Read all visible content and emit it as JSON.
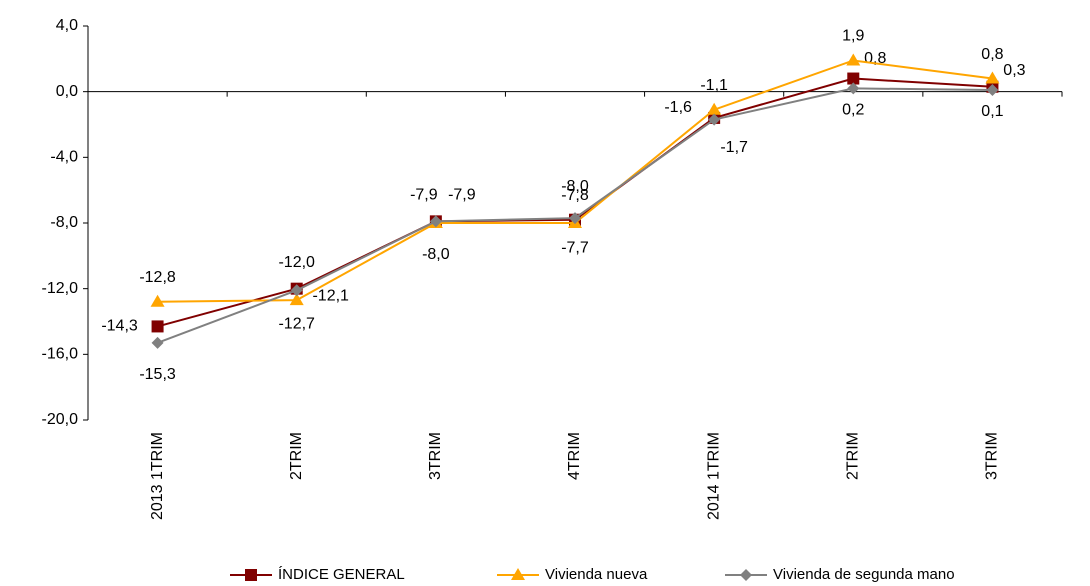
{
  "chart_data": {
    "type": "line",
    "categories": [
      "2013 1TRIM",
      "2TRIM",
      "3TRIM",
      "4TRIM",
      "2014 1TRIM",
      "2TRIM",
      "3TRIM"
    ],
    "series": [
      {
        "name": "ÍNDICE GENERAL",
        "color": "#800000",
        "marker": "square",
        "values": [
          -14.3,
          -12.0,
          -7.9,
          -7.8,
          -1.6,
          0.8,
          0.3
        ],
        "value_labels": [
          "-14,3",
          "-12,0",
          "-7,9",
          "-7,8",
          "-1,6",
          "0,8",
          "0,3"
        ]
      },
      {
        "name": "Vivienda nueva",
        "color": "#ffa500",
        "marker": "triangle",
        "values": [
          -12.8,
          -12.7,
          -8.0,
          -8.0,
          -1.1,
          1.9,
          0.8
        ],
        "value_labels": [
          "-12,8",
          "-12,7",
          "-8,0",
          "-8,0",
          "-1,1",
          "1,9",
          "0,8"
        ]
      },
      {
        "name": "Vivienda de segunda mano",
        "color": "#808080",
        "marker": "diamond",
        "values": [
          -15.3,
          -12.1,
          -7.9,
          -7.7,
          -1.7,
          0.2,
          0.1
        ],
        "value_labels": [
          "-15,3",
          "-12,1",
          "-7,9",
          "-7,7",
          "-1,7",
          "0,2",
          "0,1"
        ]
      }
    ],
    "ylim": [
      -20,
      4
    ],
    "yticks": [
      {
        "value": -20,
        "label": "-20,0"
      },
      {
        "value": -16,
        "label": "-16,0"
      },
      {
        "value": -12,
        "label": "-12,0"
      },
      {
        "value": -8,
        "label": "-8,0"
      },
      {
        "value": -4,
        "label": "-4,0"
      },
      {
        "value": 0,
        "label": "0,0"
      },
      {
        "value": 4,
        "label": "4,0"
      }
    ],
    "legend": "bottom"
  }
}
